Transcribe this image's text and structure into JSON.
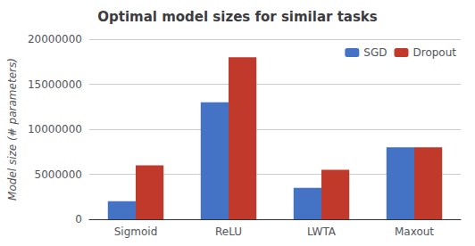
{
  "chart_data": {
    "type": "bar",
    "title": "Optimal model sizes for similar tasks",
    "categories": [
      "Sigmoid",
      "ReLU",
      "LWTA",
      "Maxout"
    ],
    "series": [
      {
        "name": "SGD",
        "color": "#4472C4",
        "values": [
          2000000,
          13000000,
          3500000,
          8000000
        ]
      },
      {
        "name": "Dropout",
        "color": "#C0392B",
        "values": [
          6000000,
          18000000,
          5500000,
          8000000
        ]
      }
    ],
    "ylabel": "Model size (# parameters)",
    "ylim": [
      0,
      20000000
    ],
    "yticks": [
      0,
      5000000,
      10000000,
      15000000,
      20000000
    ],
    "grid": true,
    "legend": "upper right"
  }
}
